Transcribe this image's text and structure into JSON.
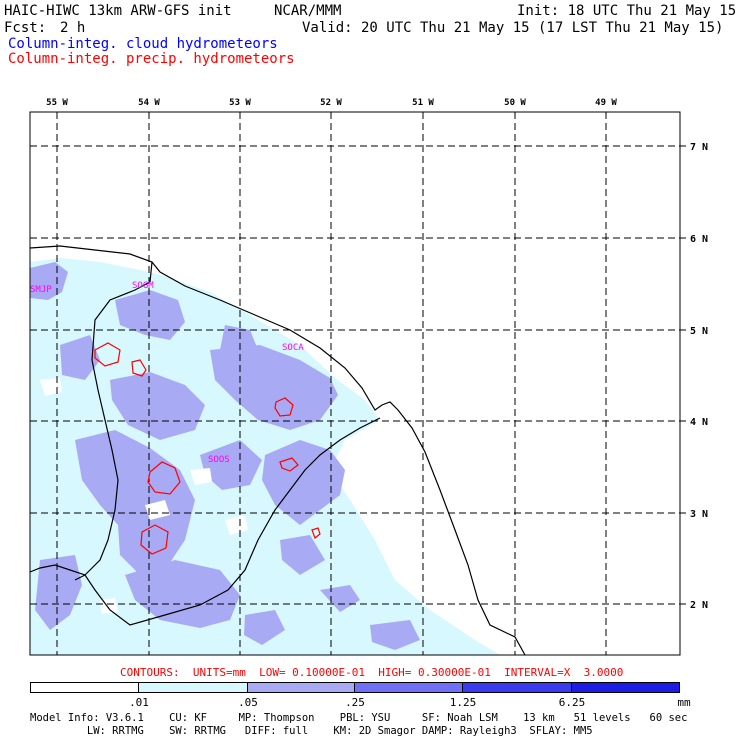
{
  "header": {
    "model": "HAIC-HIWC 13km ARW-GFS init",
    "org": "NCAR/MMM",
    "init": "Init: 18 UTC Thu 21 May 15",
    "fcst_label": "Fcst:",
    "fcst_value": "2 h",
    "valid": "Valid: 20 UTC Thu 21 May 15 (17 LST Thu 21 May 15)",
    "legend_cloud": "Column-integ. cloud hydrometeors",
    "legend_precip": "Column-integ. precip. hydrometeors"
  },
  "colors": {
    "cloud_text": "#0000ff",
    "precip_text": "#ff0000",
    "shade_1": "#d8f8ff",
    "shade_2": "#a9aaf4",
    "shade_3": "#6f70f5",
    "shade_4": "#3a3aee",
    "shade_5": "#1d1de6",
    "station": "#ff00ff"
  },
  "lon_labels": [
    "55 W",
    "54 W",
    "53 W",
    "52 W",
    "51 W",
    "50 W",
    "49 W"
  ],
  "lat_labels": [
    "7 N",
    "6 N",
    "5 N",
    "4 N",
    "3 N",
    "2 N"
  ],
  "stations": [
    "SMJP",
    "SOGM",
    "SOCA",
    "SOOS"
  ],
  "contours_line": "CONTOURS:  UNITS=mm  LOW= 0.10000E-01  HIGH= 0.30000E-01  INTERVAL=X  3.0000",
  "colorbar": {
    "labels": [
      ".01",
      ".05",
      ".25",
      "1.25",
      "6.25"
    ],
    "unit": "mm"
  },
  "footer": {
    "line1": "Model Info: V3.6.1    CU: KF     MP: Thompson    PBL: YSU     SF: Noah LSM    13 km   51 levels   60 sec",
    "line2": "         LW: RRTMG    SW: RRTMG   DIFF: full    KM: 2D Smagor DAMP: Rayleigh3  SFLAY: MM5"
  }
}
